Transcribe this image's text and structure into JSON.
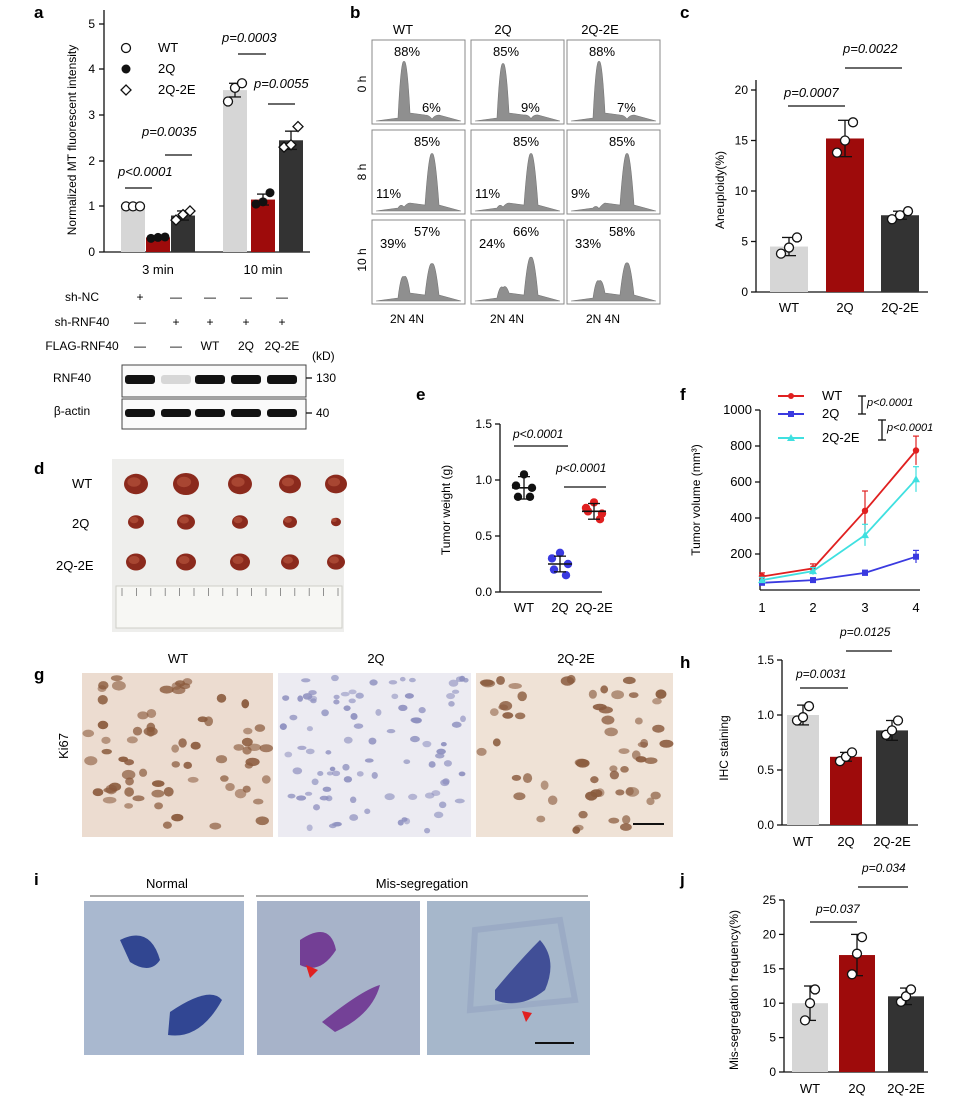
{
  "panels": {
    "a": {
      "label": "a",
      "ylabel": "Normalized MT fluorescent intensity",
      "yticks": [
        "0",
        "1",
        "2",
        "3",
        "4",
        "5"
      ],
      "groups": [
        "3 min",
        "10 min"
      ],
      "legend": [
        "WT",
        "2Q",
        "2Q-2E"
      ],
      "p": [
        "p<0.0001",
        "p=0.0035",
        "p=0.0003",
        "p=0.0055"
      ],
      "blot": {
        "rows": [
          "sh-NC",
          "sh-RNF40",
          "FLAG-RNF40"
        ],
        "cells": [
          [
            "+",
            "—",
            "—",
            "—",
            "—"
          ],
          [
            "—",
            "+",
            "+",
            "+",
            "+"
          ],
          [
            "—",
            "—",
            "WT",
            "2Q",
            "2Q-2E"
          ]
        ],
        "kd": "(kD)",
        "bands": [
          "RNF40",
          "β-actin"
        ],
        "sizes": [
          "130",
          "40"
        ]
      }
    },
    "b": {
      "label": "b",
      "cols": [
        "WT",
        "2Q",
        "2Q-2E"
      ],
      "rows": [
        "0 h",
        "8 h",
        "10 h"
      ],
      "pct": [
        [
          "88%",
          "6%"
        ],
        [
          "85%",
          "9%"
        ],
        [
          "88%",
          "7%"
        ],
        [
          "85%",
          "11%"
        ],
        [
          "85%",
          "11%"
        ],
        [
          "85%",
          "9%"
        ],
        [
          "39%",
          "57%"
        ],
        [
          "24%",
          "66%"
        ],
        [
          "33%",
          "58%"
        ]
      ],
      "x": "2N 4N"
    },
    "c": {
      "label": "c",
      "ylabel": "Aneuploidy(%)",
      "yticks": [
        "0",
        "5",
        "10",
        "15",
        "20"
      ],
      "p": [
        "p=0.0007",
        "p=0.0022"
      ],
      "cats": [
        "WT",
        "2Q",
        "2Q-2E"
      ]
    },
    "d": {
      "label": "d",
      "rows": [
        "WT",
        "2Q",
        "2Q-2E"
      ]
    },
    "e": {
      "label": "e",
      "ylabel": "Tumor weight (g)",
      "yticks": [
        "0.0",
        "0.5",
        "1.0",
        "1.5"
      ],
      "p": [
        "p<0.0001",
        "p<0.0001"
      ],
      "cats": [
        "WT",
        "2Q",
        "2Q-2E"
      ]
    },
    "f": {
      "label": "f",
      "ylabel": "Tumor volume (mm³)",
      "yticks": [
        "200",
        "400",
        "600",
        "800",
        "1000"
      ],
      "xticks": [
        "1",
        "2",
        "3",
        "4"
      ],
      "p": [
        "p<0.0001",
        "p<0.0001"
      ]
    },
    "g": {
      "label": "g",
      "cols": [
        "WT",
        "2Q",
        "2Q-2E"
      ],
      "row": "Ki67"
    },
    "h": {
      "label": "h",
      "ylabel": "IHC staining",
      "yticks": [
        "0.0",
        "0.5",
        "1.0",
        "1.5"
      ],
      "p": [
        "p=0.0031",
        "p=0.0125"
      ],
      "cats": [
        "WT",
        "2Q",
        "2Q-2E"
      ]
    },
    "i": {
      "label": "i",
      "headers": [
        "Normal",
        "Mis-segregation"
      ]
    },
    "j": {
      "label": "j",
      "ylabel": "Mis-segregation frequency(%)",
      "yticks": [
        "0",
        "5",
        "10",
        "15",
        "20",
        "25"
      ],
      "p": [
        "p=0.037",
        "p=0.034"
      ],
      "cats": [
        "WT",
        "2Q",
        "2Q-2E"
      ]
    }
  },
  "colors": {
    "wt": "#d6d6d6",
    "q2": "#9e0b0b",
    "q2e": "#333333",
    "blue": "#3a3ae0",
    "red": "#e02020",
    "cyan": "#3fe0e0"
  },
  "chart_data": [
    {
      "panel": "a",
      "type": "bar",
      "categories": [
        "3 min",
        "10 min"
      ],
      "ylim": [
        0,
        5
      ],
      "series": [
        {
          "name": "WT",
          "values": [
            1.0,
            3.55
          ],
          "err": [
            0,
            0.15
          ],
          "points": [
            [
              1.0,
              1.0,
              1.0
            ],
            [
              3.3,
              3.6,
              3.7
            ]
          ]
        },
        {
          "name": "2Q",
          "values": [
            0.32,
            1.15
          ],
          "err": [
            0.02,
            0.12
          ],
          "points": [
            [
              0.3,
              0.32,
              0.33
            ],
            [
              1.05,
              1.1,
              1.3
            ]
          ]
        },
        {
          "name": "2Q-2E",
          "values": [
            0.8,
            2.45
          ],
          "err": [
            0.1,
            0.2
          ],
          "points": [
            [
              0.7,
              0.82,
              0.9
            ],
            [
              2.3,
              2.35,
              2.75
            ]
          ]
        }
      ]
    },
    {
      "panel": "c",
      "type": "bar",
      "categories": [
        "WT",
        "2Q",
        "2Q-2E"
      ],
      "values": [
        4.5,
        15.2,
        7.6
      ],
      "err": [
        0.9,
        1.8,
        0.4
      ],
      "ylim": [
        0,
        20
      ],
      "points": [
        [
          3.8,
          4.4,
          5.4
        ],
        [
          13.8,
          15.0,
          16.8
        ],
        [
          7.2,
          7.6,
          8.0
        ]
      ]
    },
    {
      "panel": "e",
      "type": "scatter",
      "categories": [
        "WT",
        "2Q",
        "2Q-2E"
      ],
      "means": [
        0.93,
        0.25,
        0.72
      ],
      "sd": [
        0.1,
        0.07,
        0.07
      ],
      "ylim": [
        0,
        1.5
      ],
      "points": [
        [
          1.05,
          0.95,
          0.93,
          0.85,
          0.85
        ],
        [
          0.35,
          0.3,
          0.25,
          0.2,
          0.15
        ],
        [
          0.8,
          0.75,
          0.7,
          0.72,
          0.65
        ]
      ]
    },
    {
      "panel": "f",
      "type": "line",
      "x": [
        1,
        2,
        3,
        4
      ],
      "ylim": [
        0,
        1000
      ],
      "series": [
        {
          "name": "WT",
          "values": [
            75,
            120,
            440,
            775
          ],
          "err": [
            20,
            25,
            110,
            80
          ]
        },
        {
          "name": "2Q",
          "values": [
            40,
            55,
            95,
            185
          ],
          "err": [
            10,
            12,
            15,
            35
          ]
        },
        {
          "name": "2Q-2E",
          "values": [
            55,
            105,
            305,
            615
          ],
          "err": [
            15,
            20,
            60,
            70
          ]
        }
      ]
    },
    {
      "panel": "h",
      "type": "bar",
      "categories": [
        "WT",
        "2Q",
        "2Q-2E"
      ],
      "values": [
        1.0,
        0.62,
        0.86
      ],
      "err": [
        0.09,
        0.04,
        0.09
      ],
      "ylim": [
        0,
        1.5
      ],
      "points": [
        [
          0.95,
          0.98,
          1.08
        ],
        [
          0.58,
          0.62,
          0.66
        ],
        [
          0.82,
          0.86,
          0.95
        ]
      ]
    },
    {
      "panel": "j",
      "type": "bar",
      "categories": [
        "WT",
        "2Q",
        "2Q-2E"
      ],
      "values": [
        10,
        17,
        11
      ],
      "err": [
        2.5,
        3,
        1.2
      ],
      "ylim": [
        0,
        25
      ],
      "points": [
        [
          7.5,
          10,
          12
        ],
        [
          14.2,
          17.2,
          19.6
        ],
        [
          10.2,
          11,
          12
        ]
      ]
    }
  ]
}
